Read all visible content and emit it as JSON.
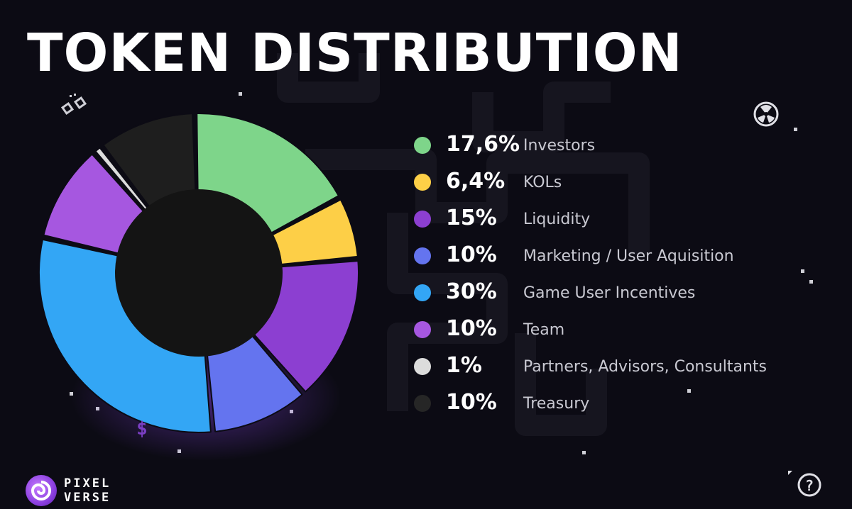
{
  "page": {
    "title": "TOKEN DISTRIBUTION"
  },
  "chart_data": {
    "type": "pie",
    "title": "TOKEN DISTRIBUTION",
    "style": "donut",
    "slices": [
      {
        "label": "Investors",
        "value": 17.6,
        "display": "17,6%",
        "color": "#7ed58a"
      },
      {
        "label": "KOLs",
        "value": 6.4,
        "display": "6,4%",
        "color": "#fdcf47"
      },
      {
        "label": "Liquidity",
        "value": 15,
        "display": "15%",
        "color": "#8c3fd1"
      },
      {
        "label": "Marketing / User Aquisition",
        "value": 10,
        "display": "10%",
        "color": "#6474ef"
      },
      {
        "label": "Game User Incentives",
        "value": 30,
        "display": "30%",
        "color": "#33a6f5"
      },
      {
        "label": "Team",
        "value": 10,
        "display": "10%",
        "color": "#a657e0"
      },
      {
        "label": "Partners, Advisors, Consultants",
        "value": 1,
        "display": "1%",
        "color": "#dcdcdc"
      },
      {
        "label": "Treasury",
        "value": 10,
        "display": "10%",
        "color": "#1e1e1e"
      }
    ],
    "legend_position": "right"
  },
  "logo": {
    "line1": "PIXEL",
    "line2": "VERSE"
  },
  "icons": [
    "chain-link-icon",
    "nuclear-icon",
    "dollar-icon",
    "question-icon"
  ]
}
